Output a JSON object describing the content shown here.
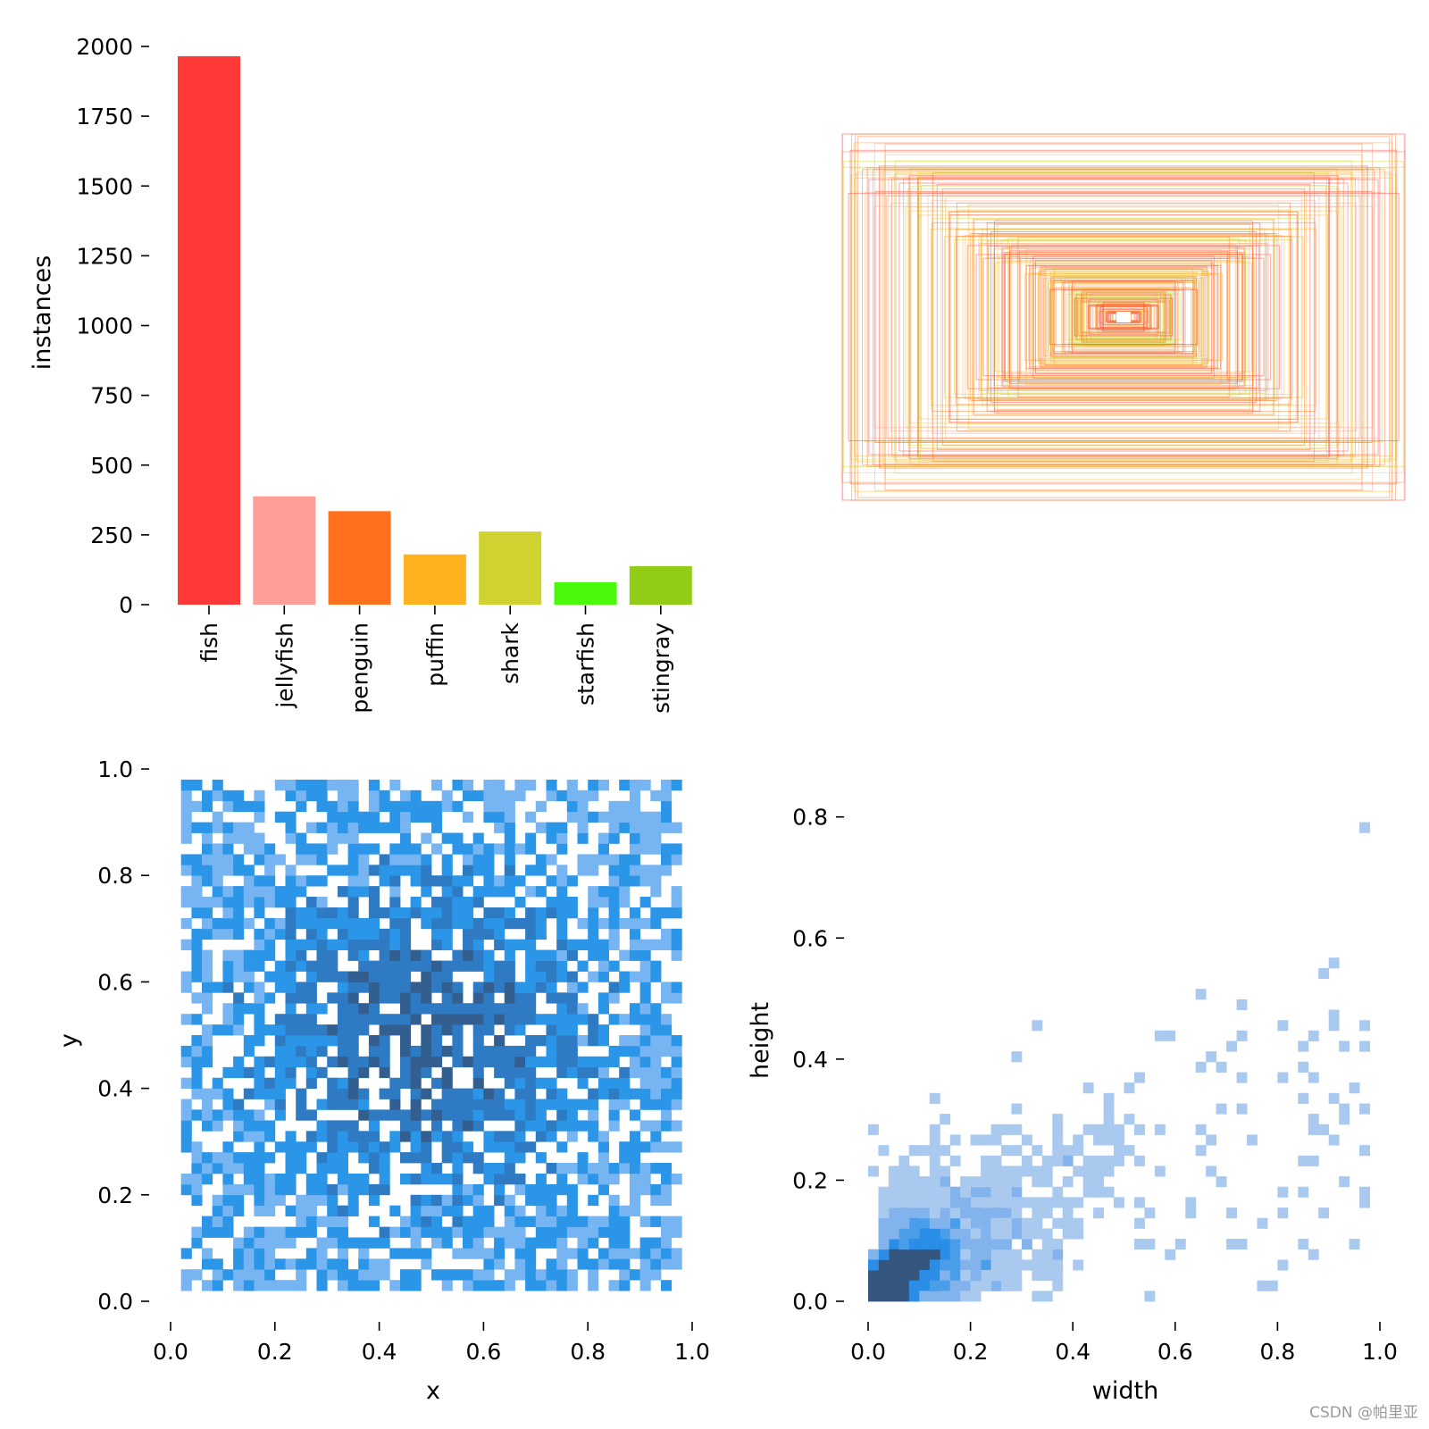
{
  "watermark": "CSDN @帕里亚",
  "chart_data": [
    {
      "type": "bar",
      "categories": [
        "fish",
        "jellyfish",
        "penguin",
        "puffin",
        "shark",
        "starfish",
        "stingray"
      ],
      "values": [
        1965,
        388,
        335,
        180,
        262,
        80,
        138
      ],
      "colors": [
        "#ff3838",
        "#ff9d97",
        "#ff701f",
        "#ffb21d",
        "#cfd231",
        "#48f90a",
        "#92cc17"
      ],
      "ylabel": "instances",
      "ylim": [
        0,
        2000
      ],
      "yticks": [
        "0",
        "250",
        "500",
        "750",
        "1000",
        "1250",
        "1500",
        "1750",
        "2000"
      ]
    },
    {
      "type": "box-overlay",
      "description_values": "bounding boxes of labels overlaid centered",
      "colors": [
        "#ff3838",
        "#ff9d97",
        "#ff701f",
        "#ffb21d",
        "#cfd231"
      ]
    },
    {
      "type": "heatmap",
      "xlabel": "x",
      "ylabel": "y",
      "xlim": [
        0,
        1
      ],
      "ylim": [
        0,
        1
      ],
      "xticks": [
        "0.0",
        "0.2",
        "0.4",
        "0.6",
        "0.8",
        "1.0"
      ],
      "yticks": [
        "0.0",
        "0.2",
        "0.4",
        "0.6",
        "0.8",
        "1.0"
      ],
      "bins": 50,
      "colors": [
        "#77b5f2",
        "#2b96e8",
        "#2e7bc4",
        "#325f8f"
      ]
    },
    {
      "type": "heatmap",
      "xlabel": "width",
      "ylabel": "height",
      "xlim": [
        0,
        1
      ],
      "ylim": [
        0,
        0.86
      ],
      "xticks": [
        "0.0",
        "0.2",
        "0.4",
        "0.6",
        "0.8",
        "1.0"
      ],
      "yticks": [
        "0.0",
        "0.2",
        "0.4",
        "0.6",
        "0.8"
      ],
      "bins": 50,
      "colors": [
        "#a9c9ef",
        "#82b3ec",
        "#4a9de8",
        "#2a8de6",
        "#34567f"
      ]
    }
  ]
}
